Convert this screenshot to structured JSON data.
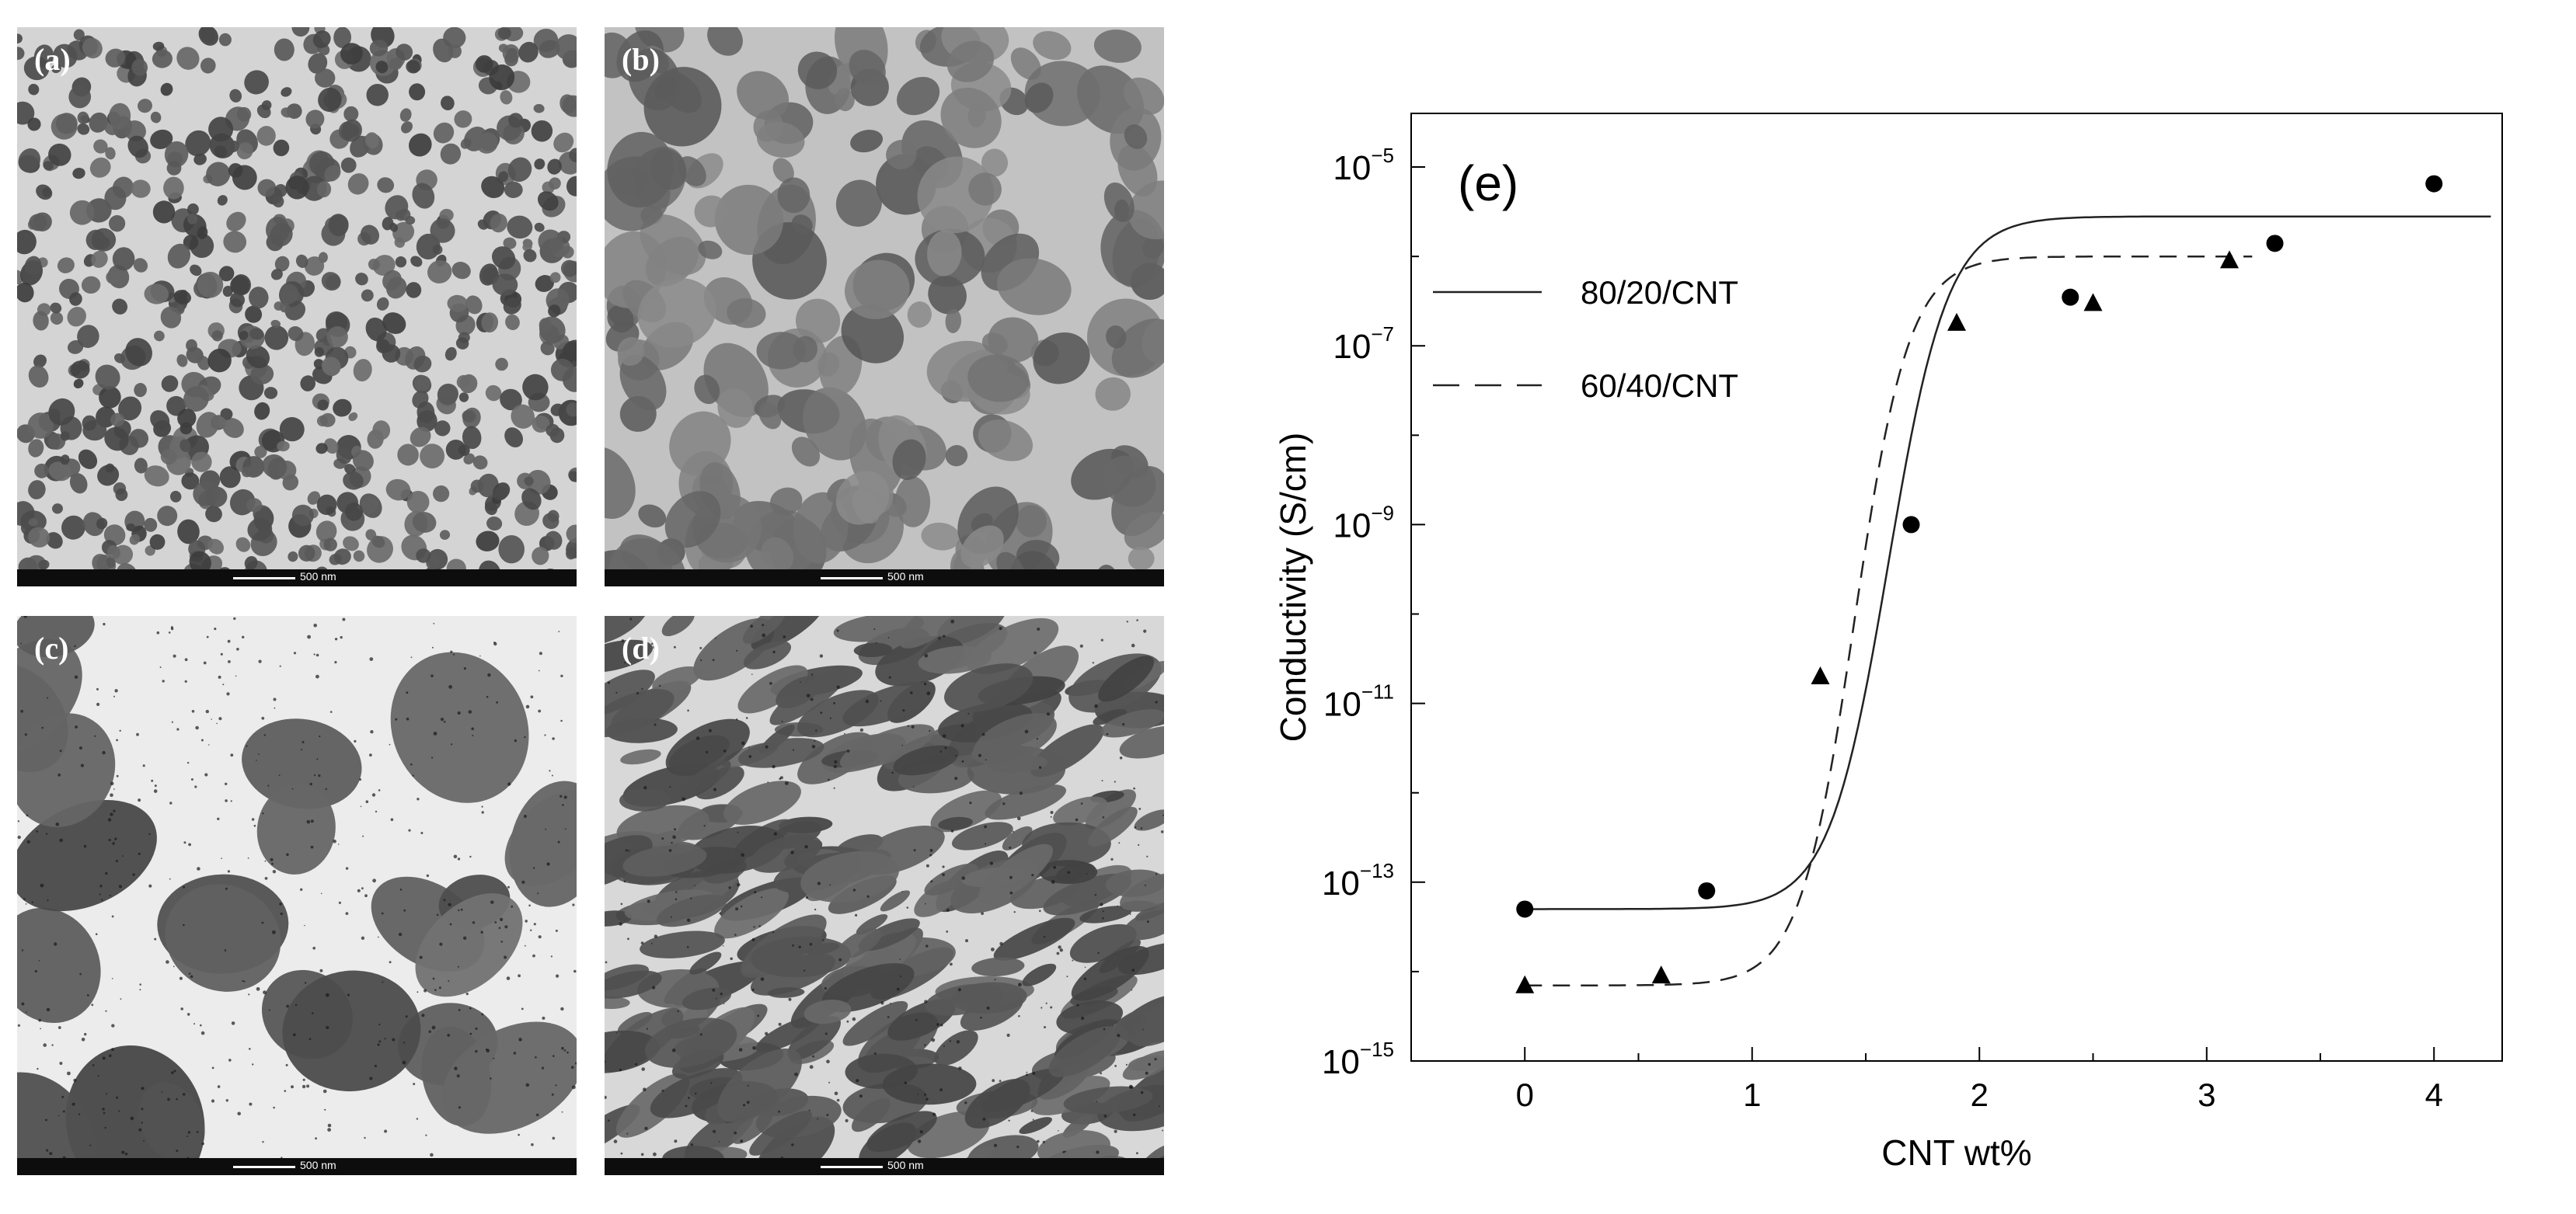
{
  "panels": [
    {
      "label": "(a)",
      "scale_bar": "500 nm"
    },
    {
      "label": "(b)",
      "scale_bar": "500 nm"
    },
    {
      "label": "(c)",
      "scale_bar": "500 nm"
    },
    {
      "label": "(d)",
      "scale_bar": "500 nm"
    }
  ],
  "chart_data": {
    "type": "scatter",
    "panel_label": "(e)",
    "xlabel": "CNT wt%",
    "ylabel": "Conductivity (S/cm)",
    "xlim": [
      -0.5,
      4.3
    ],
    "ylim_log10": [
      -15,
      -4.4
    ],
    "yscale": "log",
    "x_ticks": [
      0,
      1,
      2,
      3,
      4
    ],
    "y_ticks": [
      {
        "base": "10",
        "exp": "−5",
        "value": 1e-05
      },
      {
        "base": "10",
        "exp": "−7",
        "value": 1e-07
      },
      {
        "base": "10",
        "exp": "−9",
        "value": 1e-09
      },
      {
        "base": "10",
        "exp": "−11",
        "value": 1e-11
      },
      {
        "base": "10",
        "exp": "−13",
        "value": 1e-13
      },
      {
        "base": "10",
        "exp": "−15",
        "value": 1e-15
      }
    ],
    "legend_position": "top-left",
    "series": [
      {
        "name": "80/20/CNT",
        "marker": "circle",
        "line": "solid",
        "points": [
          {
            "x": 0,
            "y": 5e-14
          },
          {
            "x": 0.8,
            "y": 8e-14
          },
          {
            "x": 1.7,
            "y": 1e-09
          },
          {
            "x": 2.4,
            "y": 3.5e-07
          },
          {
            "x": 3.3,
            "y": 1.4e-06
          },
          {
            "x": 4.0,
            "y": 6.5e-06
          }
        ],
        "fit": {
          "low": 5e-14,
          "high": 2.8e-06,
          "center": 1.6,
          "width": 0.13
        }
      },
      {
        "name": "60/40/CNT",
        "marker": "triangle",
        "line": "dashed",
        "points": [
          {
            "x": 0,
            "y": 7e-15
          },
          {
            "x": 0.6,
            "y": 9e-15
          },
          {
            "x": 1.3,
            "y": 2e-11
          },
          {
            "x": 1.9,
            "y": 1.8e-07
          },
          {
            "x": 2.5,
            "y": 3e-07
          },
          {
            "x": 3.1,
            "y": 9e-07
          }
        ],
        "fit": {
          "low": 7e-15,
          "high": 1e-06,
          "center": 1.45,
          "width": 0.12
        }
      }
    ]
  }
}
